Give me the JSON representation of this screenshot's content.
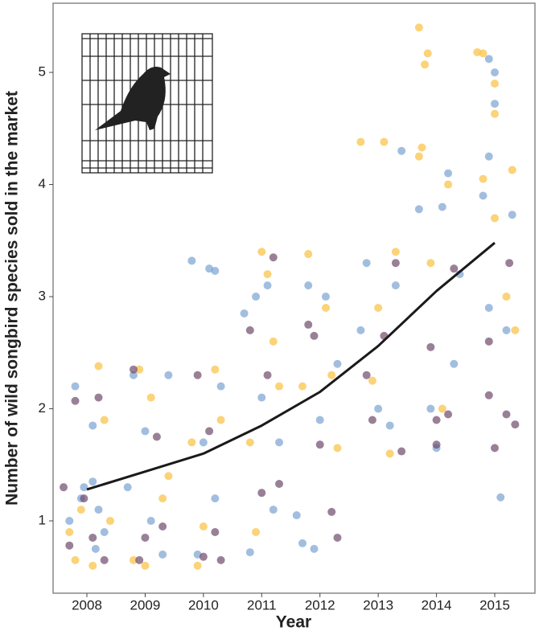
{
  "chart_data": {
    "type": "scatter",
    "x_label": "Year",
    "y_label": "Number of wild songbird species sold in the market",
    "xlim": [
      2007.42,
      2015.69
    ],
    "ylim": [
      0.355,
      5.617
    ],
    "xticks": [
      2008,
      2009,
      2010,
      2011,
      2012,
      2013,
      2014,
      2015
    ],
    "yticks": [
      1,
      2,
      3,
      4,
      5
    ],
    "series": [
      {
        "color": "#7ba3d1",
        "x": [
          2007.7,
          2007.9,
          2008.1,
          2008.2,
          2007.8,
          2008.1,
          2008.3,
          2007.95,
          2008.15,
          2008.7,
          2009.1,
          2009.3,
          2009.4,
          2009.0,
          2008.8,
          2009.8,
          2010.1,
          2010.2,
          2009.9,
          2010.2,
          2010.0,
          2010.3,
          2010.7,
          2010.9,
          2011.1,
          2011.3,
          2010.8,
          2011.2,
          2011.0,
          2011.6,
          2011.7,
          2011.9,
          2011.8,
          2012.1,
          2012.3,
          2012.0,
          2012.8,
          2013.0,
          2013.2,
          2013.4,
          2012.7,
          2013.3,
          2014.0,
          2014.2,
          2014.1,
          2013.7,
          2014.3,
          2014.4,
          2013.9,
          2014.9,
          2015.0,
          2015.0,
          2014.9,
          2015.1,
          2015.3,
          2014.8,
          2015.2,
          2014.9
        ],
        "values": [
          1.0,
          1.2,
          1.35,
          1.1,
          2.2,
          1.85,
          0.9,
          1.3,
          0.75,
          1.3,
          1.0,
          0.7,
          2.3,
          1.8,
          2.3,
          3.32,
          3.25,
          3.23,
          0.7,
          1.2,
          1.7,
          2.2,
          2.85,
          3.0,
          3.1,
          1.7,
          0.72,
          1.1,
          2.1,
          1.05,
          0.8,
          0.75,
          3.1,
          3.0,
          2.4,
          1.9,
          3.3,
          2.0,
          1.85,
          4.3,
          2.7,
          3.1,
          1.65,
          4.1,
          3.8,
          3.78,
          2.4,
          3.2,
          2.0,
          5.12,
          5.0,
          4.72,
          4.25,
          1.21,
          3.73,
          3.9,
          2.7,
          2.9
        ]
      },
      {
        "color": "#f9c13f",
        "x": [
          2007.7,
          2007.8,
          2008.2,
          2008.3,
          2007.9,
          2008.1,
          2008.4,
          2008.8,
          2009.0,
          2009.3,
          2009.1,
          2008.9,
          2009.4,
          2009.9,
          2010.0,
          2010.2,
          2009.8,
          2010.3,
          2010.9,
          2011.0,
          2011.2,
          2010.8,
          2011.3,
          2011.1,
          2011.8,
          2012.1,
          2012.3,
          2011.7,
          2012.2,
          2012.7,
          2013.1,
          2013.3,
          2012.9,
          2013.2,
          2013.0,
          2013.7,
          2013.8,
          2013.85,
          2013.7,
          2013.75,
          2014.2,
          2014.1,
          2013.9,
          2014.7,
          2014.8,
          2015.0,
          2015.0,
          2015.0,
          2015.3,
          2015.2,
          2015.35,
          2014.8
        ],
        "values": [
          0.9,
          0.65,
          2.38,
          1.9,
          1.1,
          0.6,
          1.0,
          0.65,
          0.6,
          1.2,
          2.1,
          2.35,
          1.4,
          0.6,
          0.95,
          2.35,
          1.7,
          1.9,
          0.9,
          3.4,
          2.6,
          1.7,
          2.2,
          3.2,
          3.38,
          2.9,
          1.65,
          2.2,
          2.3,
          4.38,
          4.38,
          3.4,
          2.25,
          1.6,
          2.9,
          5.4,
          5.07,
          5.17,
          4.25,
          4.33,
          4.0,
          2.0,
          3.3,
          5.18,
          5.17,
          4.9,
          4.63,
          3.7,
          4.13,
          3.0,
          2.7,
          4.05
        ]
      },
      {
        "color": "#6e4a6b",
        "x": [
          2007.6,
          2007.7,
          2007.8,
          2008.1,
          2008.2,
          2008.3,
          2007.95,
          2008.8,
          2009.0,
          2009.2,
          2009.3,
          2008.9,
          2009.9,
          2010.0,
          2010.2,
          2010.1,
          2010.3,
          2010.8,
          2011.0,
          2011.2,
          2011.3,
          2011.1,
          2011.8,
          2012.0,
          2012.2,
          2012.3,
          2011.9,
          2012.8,
          2013.1,
          2013.3,
          2013.4,
          2012.9,
          2013.9,
          2014.0,
          2014.2,
          2014.3,
          2014.0,
          2014.9,
          2015.0,
          2015.2,
          2015.35,
          2014.9,
          2015.25
        ],
        "values": [
          1.3,
          0.78,
          2.07,
          0.85,
          2.1,
          0.65,
          1.2,
          2.35,
          0.85,
          1.75,
          0.95,
          0.65,
          2.3,
          0.68,
          0.9,
          1.8,
          0.65,
          2.7,
          1.25,
          3.35,
          1.33,
          2.3,
          2.75,
          1.68,
          1.08,
          0.85,
          2.65,
          2.3,
          2.65,
          3.3,
          1.62,
          1.9,
          2.55,
          1.9,
          1.95,
          3.25,
          1.68,
          2.12,
          1.65,
          1.95,
          1.86,
          2.6,
          3.3
        ]
      }
    ],
    "fit": {
      "color": "#1a1a1a",
      "x": [
        2008,
        2009,
        2010,
        2011,
        2012,
        2013,
        2014,
        2015
      ],
      "values": [
        1.28,
        1.44,
        1.6,
        1.85,
        2.15,
        2.56,
        3.05,
        3.48
      ]
    }
  }
}
